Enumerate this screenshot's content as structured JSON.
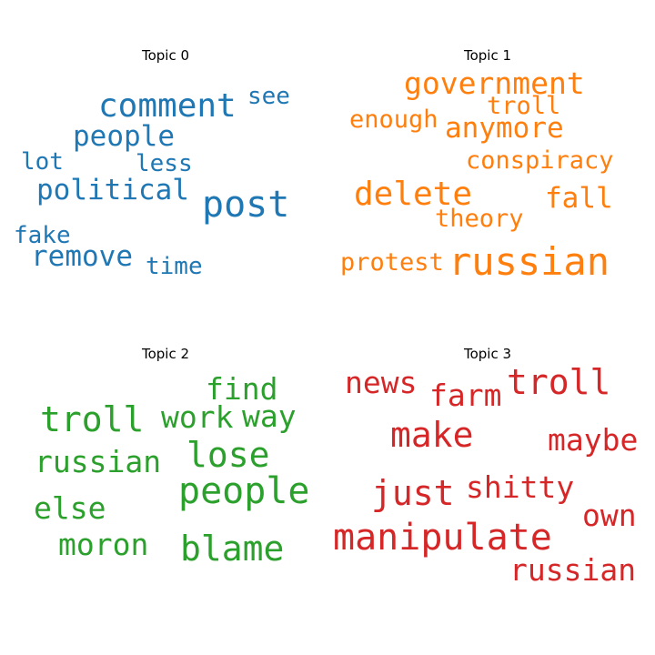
{
  "chart_data": [
    {
      "type": "wordcloud",
      "title": "Topic 0",
      "color": "#1f77b4",
      "words": [
        {
          "text": "post",
          "weight": 1.0
        },
        {
          "text": "comment",
          "weight": 0.9
        },
        {
          "text": "political",
          "weight": 0.75
        },
        {
          "text": "people",
          "weight": 0.75
        },
        {
          "text": "remove",
          "weight": 0.75
        },
        {
          "text": "see",
          "weight": 0.6
        },
        {
          "text": "less",
          "weight": 0.6
        },
        {
          "text": "lot",
          "weight": 0.6
        },
        {
          "text": "fake",
          "weight": 0.6
        },
        {
          "text": "time",
          "weight": 0.6
        }
      ]
    },
    {
      "type": "wordcloud",
      "title": "Topic 1",
      "color": "#ff7f0e",
      "words": [
        {
          "text": "russian",
          "weight": 1.0
        },
        {
          "text": "delete",
          "weight": 0.9
        },
        {
          "text": "government",
          "weight": 0.85
        },
        {
          "text": "anymore",
          "weight": 0.75
        },
        {
          "text": "fall",
          "weight": 0.75
        },
        {
          "text": "troll",
          "weight": 0.65
        },
        {
          "text": "conspiracy",
          "weight": 0.65
        },
        {
          "text": "enough",
          "weight": 0.65
        },
        {
          "text": "theory",
          "weight": 0.65
        },
        {
          "text": "protest",
          "weight": 0.65
        }
      ]
    },
    {
      "type": "wordcloud",
      "title": "Topic 2",
      "color": "#2ca02c",
      "words": [
        {
          "text": "people",
          "weight": 1.0
        },
        {
          "text": "troll",
          "weight": 0.95
        },
        {
          "text": "blame",
          "weight": 0.95
        },
        {
          "text": "lose",
          "weight": 0.95
        },
        {
          "text": "find",
          "weight": 0.8
        },
        {
          "text": "russian",
          "weight": 0.8
        },
        {
          "text": "work",
          "weight": 0.8
        },
        {
          "text": "way",
          "weight": 0.8
        },
        {
          "text": "moron",
          "weight": 0.8
        },
        {
          "text": "else",
          "weight": 0.8
        }
      ]
    },
    {
      "type": "wordcloud",
      "title": "Topic 3",
      "color": "#d62728",
      "words": [
        {
          "text": "manipulate",
          "weight": 1.0
        },
        {
          "text": "troll",
          "weight": 0.95
        },
        {
          "text": "just",
          "weight": 0.95
        },
        {
          "text": "make",
          "weight": 0.95
        },
        {
          "text": "news",
          "weight": 0.8
        },
        {
          "text": "farm",
          "weight": 0.8
        },
        {
          "text": "shitty",
          "weight": 0.8
        },
        {
          "text": "maybe",
          "weight": 0.8
        },
        {
          "text": "own",
          "weight": 0.8
        },
        {
          "text": "russian",
          "weight": 0.8
        }
      ]
    }
  ]
}
